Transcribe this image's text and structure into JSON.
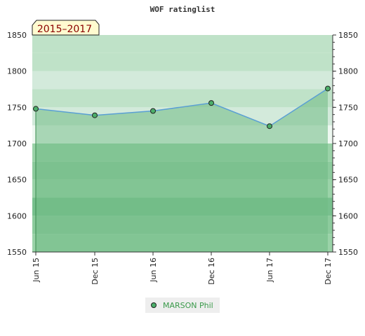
{
  "chart_data": {
    "type": "area",
    "title": "WOF ratinglist",
    "badge": "2015–2017",
    "categories": [
      "Jun 15",
      "Dec 15",
      "Jun 16",
      "Dec 16",
      "Jun 17",
      "Dec 17"
    ],
    "series": [
      {
        "name": "MARSON Phil",
        "values": [
          1748,
          1739,
          1745,
          1756,
          1724,
          1776
        ]
      }
    ],
    "ylim": [
      1550,
      1850
    ],
    "yticks": [
      "1550",
      "1600",
      "1650",
      "1700",
      "1750",
      "1800",
      "1850"
    ],
    "xlabel": "",
    "ylabel": "",
    "grid": false,
    "legend": "bottom-center",
    "colors": {
      "line": "#5a9fd4",
      "marker": "#4caf6a",
      "fill": "#7cc08f",
      "band_dark": "#78c08e",
      "band_mid": "#9ad3a8",
      "band_light": "#c7e6cf",
      "band_lightest": "#eef8f1",
      "badge_bg": "#fffbd0",
      "badge_text": "#8b0000"
    }
  }
}
